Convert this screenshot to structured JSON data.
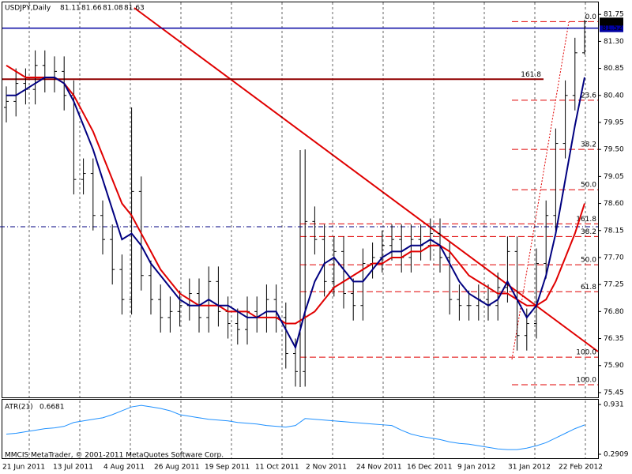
{
  "chart_data": {
    "type": "ohlc",
    "symbol": "USDJPY,Daily",
    "footer": "MMCIS MetaTrader, © 2001-2011 MetaQuotes Software Corp.",
    "x_labels": [
      "21 Jun 2011",
      "13 Jul 2011",
      "4 Aug 2011",
      "26 Aug 2011",
      "19 Sep 2011",
      "11 Oct 2011",
      "2 Nov 2011",
      "24 Nov 2011",
      "16 Dec 2011",
      "9 Jan 2012",
      "31 Jan 2012",
      "22 Feb 2012"
    ],
    "bar_color": "#000000",
    "open": [
      80.2,
      80.3,
      80.6,
      80.5,
      80.9,
      80.7,
      80.8,
      80.4,
      79.0,
      79.1,
      78.4,
      78.0,
      77.5,
      77.0,
      78.8,
      77.4,
      77.0,
      76.7,
      76.8,
      76.9,
      77.1,
      76.7,
      77.3,
      76.8,
      76.6,
      76.5,
      76.8,
      76.7,
      77.0,
      76.7,
      76.1,
      75.8,
      78.3,
      78.0,
      77.3,
      77.8,
      77.1,
      76.9,
      77.6,
      77.7,
      77.9,
      78.0,
      77.7,
      78.0,
      77.9,
      78.1,
      77.7,
      77.0,
      76.9,
      76.9,
      77.0,
      76.9,
      77.2,
      77.8,
      76.4,
      76.6,
      77.6,
      78.4,
      79.6,
      80.4,
      81.11
    ],
    "high": [
      80.55,
      80.85,
      80.85,
      81.15,
      81.15,
      81.05,
      81.05,
      80.65,
      79.35,
      79.35,
      78.65,
      78.25,
      77.75,
      80.2,
      79.05,
      77.65,
      77.25,
      77.05,
      77.15,
      77.35,
      77.35,
      77.55,
      77.55,
      77.05,
      76.85,
      77.05,
      77.05,
      77.25,
      77.25,
      76.95,
      76.35,
      79.5,
      78.55,
      78.25,
      78.05,
      78.05,
      77.35,
      77.85,
      77.95,
      78.15,
      78.25,
      78.25,
      78.25,
      78.25,
      78.35,
      78.35,
      77.95,
      77.25,
      77.15,
      77.25,
      77.25,
      77.45,
      78.05,
      78.05,
      76.85,
      77.85,
      78.65,
      79.85,
      80.65,
      81.36,
      81.66
    ],
    "low": [
      79.95,
      80.05,
      80.25,
      80.25,
      80.45,
      80.45,
      80.15,
      78.75,
      78.75,
      78.15,
      77.75,
      77.25,
      76.75,
      76.75,
      77.15,
      76.75,
      76.45,
      76.45,
      76.55,
      76.65,
      76.45,
      76.45,
      76.55,
      76.35,
      76.25,
      76.25,
      76.45,
      76.45,
      76.45,
      75.85,
      75.55,
      75.55,
      77.75,
      77.05,
      77.05,
      76.85,
      76.65,
      76.65,
      77.35,
      77.45,
      77.65,
      77.45,
      77.45,
      77.65,
      77.65,
      77.45,
      76.75,
      76.65,
      76.65,
      76.65,
      76.65,
      76.65,
      76.95,
      76.15,
      76.15,
      76.35,
      77.35,
      78.15,
      79.35,
      80.15,
      81.08
    ],
    "close": [
      80.3,
      80.6,
      80.5,
      80.9,
      80.7,
      80.8,
      80.4,
      79.0,
      79.1,
      78.4,
      78.0,
      77.5,
      77.0,
      78.8,
      77.4,
      77.0,
      76.7,
      76.8,
      76.9,
      77.1,
      76.7,
      77.3,
      76.8,
      76.6,
      76.5,
      76.8,
      76.7,
      77.0,
      76.7,
      76.1,
      75.8,
      78.3,
      78.0,
      77.3,
      77.8,
      77.1,
      76.9,
      77.6,
      77.7,
      77.9,
      78.0,
      77.7,
      78.0,
      77.9,
      78.1,
      77.7,
      77.0,
      76.9,
      76.9,
      77.0,
      76.9,
      77.2,
      77.8,
      76.4,
      76.6,
      77.6,
      78.4,
      79.6,
      80.4,
      81.11,
      81.63
    ],
    "ma_fast": {
      "color": "#000080",
      "values": [
        80.4,
        80.4,
        80.5,
        80.6,
        80.7,
        80.7,
        80.6,
        80.3,
        79.9,
        79.5,
        79.0,
        78.5,
        78.0,
        78.1,
        77.9,
        77.6,
        77.4,
        77.2,
        77.0,
        76.9,
        76.9,
        77.0,
        76.9,
        76.9,
        76.8,
        76.7,
        76.7,
        76.8,
        76.8,
        76.5,
        76.2,
        76.8,
        77.3,
        77.6,
        77.7,
        77.5,
        77.3,
        77.3,
        77.5,
        77.7,
        77.8,
        77.8,
        77.9,
        77.9,
        78.0,
        77.9,
        77.6,
        77.3,
        77.1,
        77.0,
        76.9,
        77.0,
        77.3,
        77.0,
        76.7,
        76.9,
        77.4,
        78.1,
        79.0,
        79.9,
        80.7
      ]
    },
    "ma_slow": {
      "color": "#e00000",
      "values": [
        80.9,
        80.8,
        80.7,
        80.7,
        80.7,
        80.7,
        80.6,
        80.4,
        80.1,
        79.8,
        79.4,
        79.0,
        78.6,
        78.4,
        78.1,
        77.8,
        77.5,
        77.3,
        77.1,
        77.0,
        76.9,
        76.9,
        76.9,
        76.8,
        76.8,
        76.8,
        76.7,
        76.7,
        76.7,
        76.6,
        76.6,
        76.7,
        76.8,
        77.0,
        77.2,
        77.3,
        77.4,
        77.5,
        77.6,
        77.6,
        77.7,
        77.7,
        77.8,
        77.8,
        77.9,
        77.9,
        77.8,
        77.6,
        77.4,
        77.3,
        77.2,
        77.1,
        77.1,
        77.0,
        76.9,
        76.9,
        77.0,
        77.3,
        77.7,
        78.1,
        78.6
      ]
    },
    "ylim": [
      75.37,
      81.95
    ],
    "yticks": [
      81.75,
      {
        "value": 81.3,
        "label": "81.30"
      },
      80.85,
      {
        "value": 80.4,
        "label": "80.40"
      },
      79.95,
      {
        "value": 79.5,
        "label": "79.50"
      },
      79.05,
      {
        "value": 78.6,
        "label": "78.60"
      },
      78.15,
      {
        "value": 77.7,
        "label": "77.70"
      },
      77.25,
      {
        "value": 76.8,
        "label": "76.80"
      },
      76.35,
      {
        "value": 75.9,
        "label": "75.90"
      },
      75.45
    ],
    "levels": [
      {
        "value": 81.52,
        "label": "81.52",
        "color": "#0000a0"
      },
      {
        "value": 80.67,
        "label": "161.8",
        "color": "#900000"
      }
    ],
    "fib_levels": [
      {
        "value": 81.63,
        "label": "0.0"
      },
      {
        "value": 80.32,
        "label": "23.6"
      },
      {
        "value": 79.5,
        "label": "38.2"
      },
      {
        "value": 78.83,
        "label": "50.0"
      },
      {
        "value": 75.58,
        "label": "100.0"
      },
      {
        "value": 78.26,
        "label": "161.8"
      },
      {
        "value": 78.05,
        "label": "38.2"
      },
      {
        "value": 77.58,
        "label": "50.0"
      },
      {
        "value": 77.13,
        "label": "61.8"
      },
      {
        "value": 76.04,
        "label": "100.0"
      }
    ],
    "atr": {
      "label": "ATR(21)",
      "color": "#1e90ff",
      "values": [
        0.55,
        0.56,
        0.58,
        0.6,
        0.62,
        0.63,
        0.65,
        0.7,
        0.72,
        0.74,
        0.76,
        0.8,
        0.85,
        0.9,
        0.92,
        0.9,
        0.88,
        0.85,
        0.8,
        0.78,
        0.76,
        0.74,
        0.73,
        0.72,
        0.7,
        0.69,
        0.68,
        0.66,
        0.65,
        0.64,
        0.66,
        0.75,
        0.74,
        0.73,
        0.72,
        0.71,
        0.7,
        0.69,
        0.68,
        0.67,
        0.66,
        0.6,
        0.55,
        0.52,
        0.5,
        0.48,
        0.45,
        0.43,
        0.42,
        0.4,
        0.38,
        0.36,
        0.35,
        0.35,
        0.37,
        0.4,
        0.44,
        0.5,
        0.56,
        0.62,
        0.6681
      ],
      "ylim": [
        0.24,
        0.992
      ],
      "yticks": [
        0.931,
        0.2909
      ]
    }
  }
}
